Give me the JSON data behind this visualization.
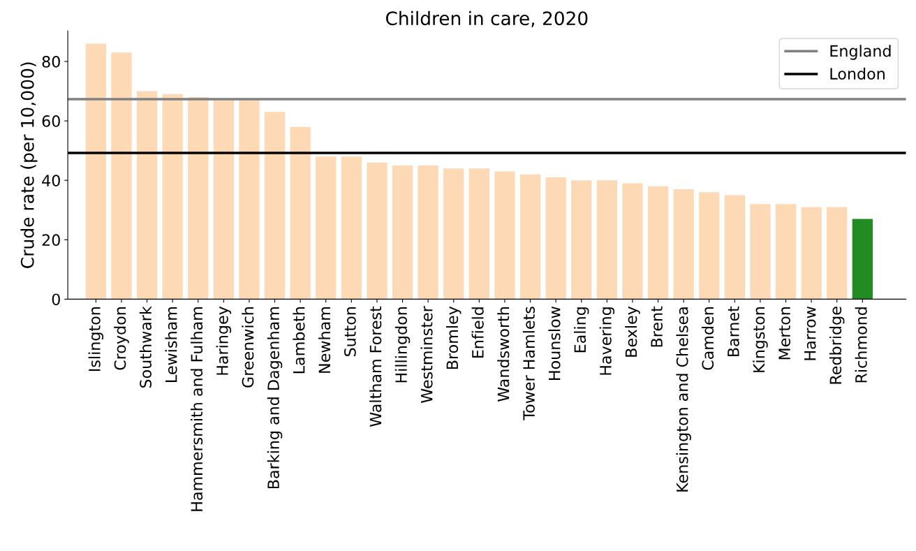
{
  "chart_data": {
    "type": "bar",
    "title": "Children in care, 2020",
    "ylabel": "Crude rate (per 10,000)",
    "categories": [
      "Islington",
      "Croydon",
      "Southwark",
      "Lewisham",
      "Hammersmith and Fulham",
      "Haringey",
      "Greenwich",
      "Barking and Dagenham",
      "Lambeth",
      "Newham",
      "Sutton",
      "Waltham Forest",
      "Hillingdon",
      "Westminster",
      "Bromley",
      "Enfield",
      "Wandsworth",
      "Tower Hamlets",
      "Hounslow",
      "Ealing",
      "Havering",
      "Bexley",
      "Brent",
      "Kensington and Chelsea",
      "Camden",
      "Barnet",
      "Kingston",
      "Merton",
      "Harrow",
      "Redbridge",
      "Richmond"
    ],
    "values": [
      86,
      83,
      70,
      69,
      68,
      67,
      67,
      63,
      58,
      48,
      48,
      46,
      45,
      45,
      44,
      44,
      43,
      42,
      41,
      40,
      40,
      39,
      38,
      37,
      36,
      35,
      32,
      32,
      31,
      31,
      27
    ],
    "colors": [
      "#fdd9b5",
      "#fdd9b5",
      "#fdd9b5",
      "#fdd9b5",
      "#fdd9b5",
      "#fdd9b5",
      "#fdd9b5",
      "#fdd9b5",
      "#fdd9b5",
      "#fdd9b5",
      "#fdd9b5",
      "#fdd9b5",
      "#fdd9b5",
      "#fdd9b5",
      "#fdd9b5",
      "#fdd9b5",
      "#fdd9b5",
      "#fdd9b5",
      "#fdd9b5",
      "#fdd9b5",
      "#fdd9b5",
      "#fdd9b5",
      "#fdd9b5",
      "#fdd9b5",
      "#fdd9b5",
      "#fdd9b5",
      "#fdd9b5",
      "#fdd9b5",
      "#fdd9b5",
      "#fdd9b5",
      "#228b22"
    ],
    "ylim": [
      0,
      90.3
    ],
    "yticks": [
      0,
      20,
      40,
      60,
      80
    ],
    "ref_lines": [
      {
        "axis": "y",
        "value": 67.3,
        "label": "England",
        "color": "#808080"
      },
      {
        "axis": "y",
        "value": 49.2,
        "label": "London",
        "color": "#000000"
      }
    ],
    "legend": "top right",
    "grid": false
  }
}
